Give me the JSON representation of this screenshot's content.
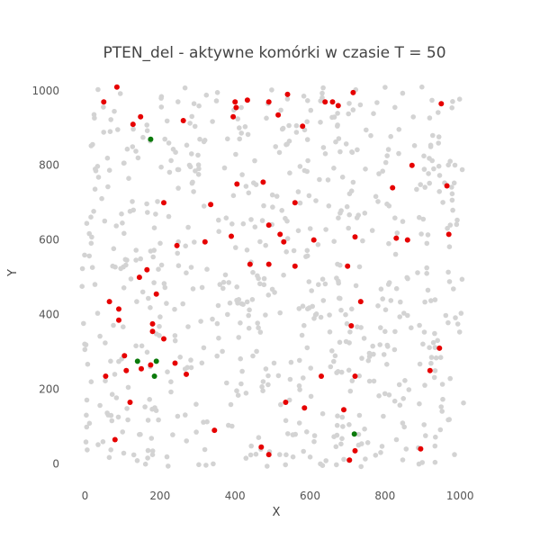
{
  "chart_data": {
    "type": "scatter",
    "title": "PTEN_del - aktywne komórki w czasie T = 50",
    "xlabel": "X",
    "ylabel": "Y",
    "xlim": [
      -30,
      1050
    ],
    "ylim": [
      -40,
      1055
    ],
    "x_ticks": [
      0,
      200,
      400,
      600,
      800,
      1000
    ],
    "y_ticks": [
      0,
      200,
      400,
      600,
      800,
      1000
    ],
    "grid": false,
    "legend": "none",
    "colors": {
      "inactive": "#d3d3d3",
      "active": "#e60000",
      "special": "#0b7a0b"
    },
    "series": [
      {
        "color": "#e60000",
        "points": [
          [
            50,
            970
          ],
          [
            85,
            1010
          ],
          [
            128,
            910
          ],
          [
            148,
            930
          ],
          [
            262,
            920
          ],
          [
            403,
            955
          ],
          [
            400,
            970
          ],
          [
            395,
            930
          ],
          [
            433,
            975
          ],
          [
            490,
            970
          ],
          [
            515,
            935
          ],
          [
            540,
            990
          ],
          [
            580,
            905
          ],
          [
            640,
            970
          ],
          [
            660,
            970
          ],
          [
            675,
            960
          ],
          [
            715,
            995
          ],
          [
            950,
            965
          ],
          [
            872,
            800
          ],
          [
            820,
            740
          ],
          [
            965,
            745
          ],
          [
            210,
            700
          ],
          [
            335,
            695
          ],
          [
            405,
            750
          ],
          [
            475,
            755
          ],
          [
            560,
            700
          ],
          [
            390,
            610
          ],
          [
            320,
            595
          ],
          [
            245,
            585
          ],
          [
            490,
            640
          ],
          [
            520,
            615
          ],
          [
            530,
            595
          ],
          [
            610,
            600
          ],
          [
            720,
            608
          ],
          [
            830,
            605
          ],
          [
            860,
            600
          ],
          [
            970,
            615
          ],
          [
            440,
            535
          ],
          [
            490,
            535
          ],
          [
            560,
            530
          ],
          [
            700,
            530
          ],
          [
            165,
            520
          ],
          [
            145,
            500
          ],
          [
            190,
            455
          ],
          [
            65,
            435
          ],
          [
            90,
            415
          ],
          [
            90,
            385
          ],
          [
            180,
            375
          ],
          [
            180,
            355
          ],
          [
            210,
            335
          ],
          [
            735,
            435
          ],
          [
            710,
            370
          ],
          [
            945,
            310
          ],
          [
            105,
            290
          ],
          [
            175,
            265
          ],
          [
            150,
            255
          ],
          [
            110,
            250
          ],
          [
            55,
            235
          ],
          [
            270,
            240
          ],
          [
            240,
            270
          ],
          [
            630,
            235
          ],
          [
            720,
            235
          ],
          [
            920,
            250
          ],
          [
            120,
            165
          ],
          [
            535,
            165
          ],
          [
            585,
            150
          ],
          [
            690,
            145
          ],
          [
            345,
            90
          ],
          [
            80,
            65
          ],
          [
            470,
            45
          ],
          [
            490,
            25
          ],
          [
            720,
            35
          ],
          [
            705,
            10
          ],
          [
            895,
            40
          ]
        ]
      },
      {
        "color": "#0b7a0b",
        "points": [
          [
            175,
            870
          ],
          [
            140,
            275
          ],
          [
            190,
            275
          ],
          [
            185,
            235
          ],
          [
            718,
            80
          ]
        ]
      }
    ]
  }
}
